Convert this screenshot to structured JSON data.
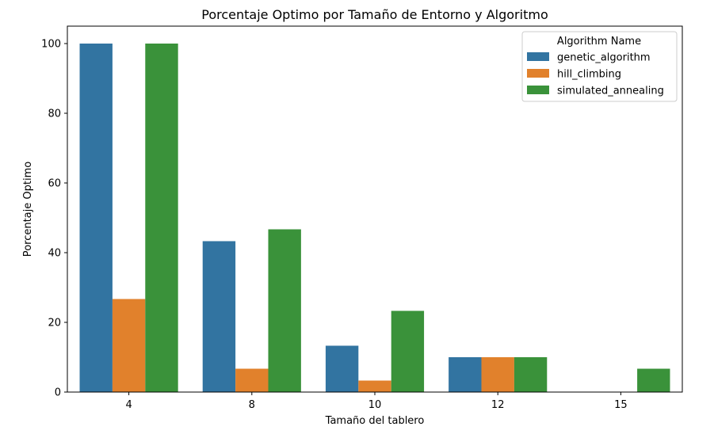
{
  "chart_data": {
    "type": "bar",
    "title": "Porcentaje Optimo por Tamaño de Entorno y Algoritmo",
    "xlabel": "Tamaño del tablero",
    "ylabel": "Porcentaje Optimo",
    "categories": [
      "4",
      "8",
      "10",
      "12",
      "15"
    ],
    "ylim": [
      0,
      105
    ],
    "yticks": [
      0,
      20,
      40,
      60,
      80,
      100
    ],
    "grid": false,
    "legend": {
      "title": "Algorithm Name",
      "position": "top-right"
    },
    "series": [
      {
        "name": "genetic_algorithm",
        "color": "#3274a1",
        "values": [
          100,
          43.3,
          13.3,
          10,
          0
        ]
      },
      {
        "name": "hill_climbing",
        "color": "#e1812c",
        "values": [
          26.7,
          6.7,
          3.3,
          10,
          0
        ]
      },
      {
        "name": "simulated_annealing",
        "color": "#3a923a",
        "values": [
          100,
          46.7,
          23.3,
          10,
          6.7
        ]
      }
    ]
  }
}
